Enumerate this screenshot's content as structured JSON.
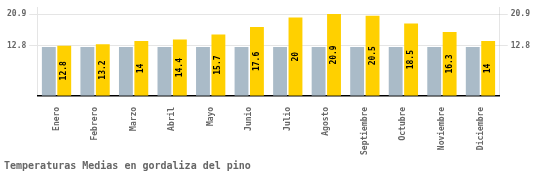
{
  "chart_data": {
    "type": "bar",
    "title": "Temperaturas Medias en gordaliza del pino",
    "categories": [
      "Enero",
      "Febrero",
      "Marzo",
      "Abril",
      "Mayo",
      "Junio",
      "Julio",
      "Agosto",
      "Septiembre",
      "Octubre",
      "Noviembre",
      "Diciembre"
    ],
    "series": [
      {
        "color": "#AABBC8",
        "values": [
          12.5,
          12.5,
          12.5,
          12.5,
          12.5,
          12.5,
          12.5,
          12.5,
          12.5,
          12.5,
          12.5,
          12.5
        ]
      },
      {
        "color": "#FFD000",
        "values": [
          12.8,
          13.2,
          14.0,
          14.4,
          15.7,
          17.6,
          20.0,
          20.9,
          20.5,
          18.5,
          16.3,
          14.0
        ],
        "data_labels": true
      }
    ],
    "ylim": [
      0,
      22.5
    ],
    "yticks": [
      12.8,
      20.9
    ],
    "y2lim": [
      0,
      22.5
    ],
    "y2ticks": [
      12.8,
      20.9
    ],
    "grid": true
  }
}
